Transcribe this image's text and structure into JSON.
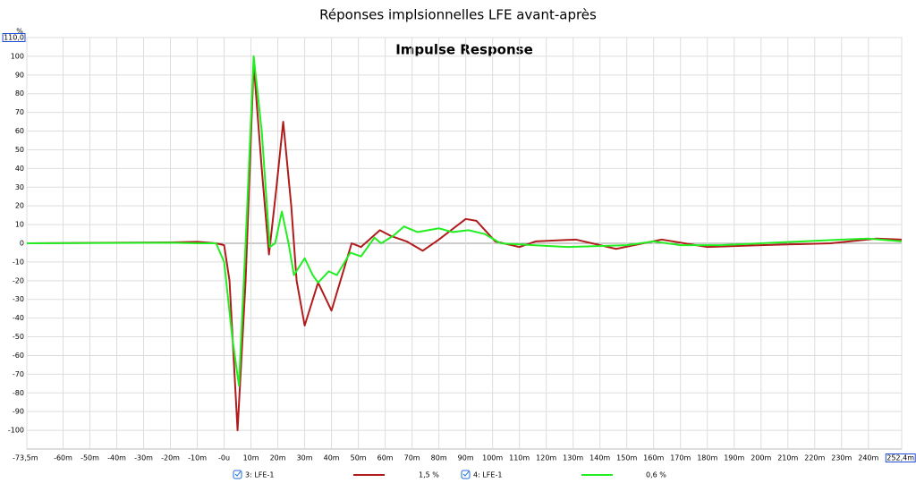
{
  "chart_data": {
    "type": "line",
    "title": "Réponses implsionnelles LFE avant-après",
    "subtitle": "Impulse Response",
    "y_label": "%",
    "xlim": [
      -73.5,
      252.4
    ],
    "ylim": [
      -110,
      110
    ],
    "grid": true,
    "xticks": [
      {
        "value": -73.5,
        "label": "-73,5m"
      },
      {
        "value": -60,
        "label": "-60m"
      },
      {
        "value": -50,
        "label": "-50m"
      },
      {
        "value": -40,
        "label": "-40m"
      },
      {
        "value": -30,
        "label": "-30m"
      },
      {
        "value": -20,
        "label": "-20m"
      },
      {
        "value": -10,
        "label": "-10m"
      },
      {
        "value": 0,
        "label": "-0u"
      },
      {
        "value": 10,
        "label": "10m"
      },
      {
        "value": 20,
        "label": "20m"
      },
      {
        "value": 30,
        "label": "30m"
      },
      {
        "value": 40,
        "label": "40m"
      },
      {
        "value": 50,
        "label": "50m"
      },
      {
        "value": 60,
        "label": "60m"
      },
      {
        "value": 70,
        "label": "70m"
      },
      {
        "value": 80,
        "label": "80m"
      },
      {
        "value": 90,
        "label": "90m"
      },
      {
        "value": 100,
        "label": "100m"
      },
      {
        "value": 110,
        "label": "110m"
      },
      {
        "value": 120,
        "label": "120m"
      },
      {
        "value": 130,
        "label": "130m"
      },
      {
        "value": 140,
        "label": "140m"
      },
      {
        "value": 150,
        "label": "150m"
      },
      {
        "value": 160,
        "label": "160m"
      },
      {
        "value": 170,
        "label": "170m"
      },
      {
        "value": 180,
        "label": "180m"
      },
      {
        "value": 190,
        "label": "190m"
      },
      {
        "value": 200,
        "label": "200m"
      },
      {
        "value": 210,
        "label": "210m"
      },
      {
        "value": 220,
        "label": "220m"
      },
      {
        "value": 230,
        "label": "230m"
      },
      {
        "value": 240,
        "label": "240m"
      },
      {
        "value": 252.4,
        "label": "252,4m"
      }
    ],
    "yticks": [
      {
        "value": 110,
        "label": "110,0"
      },
      100,
      90,
      80,
      70,
      60,
      50,
      40,
      30,
      20,
      10,
      0,
      -10,
      -20,
      -30,
      -40,
      -50,
      -60,
      -70,
      -80,
      -90,
      -100
    ],
    "series": [
      {
        "name": "3: LFE-1",
        "legend_note": "1,5 %",
        "color": "#b01c1c",
        "x": [
          -73.5,
          -20,
          -10,
          -3,
          0,
          2,
          5,
          8,
          11,
          14,
          16.7,
          19.5,
          22,
          25,
          27,
          30,
          35,
          40,
          47.5,
          51,
          58,
          62,
          68,
          74,
          80,
          90,
          94,
          101,
          110,
          116,
          131,
          146,
          163,
          180,
          200,
          226,
          243,
          252.4
        ],
        "values": [
          0,
          0.5,
          0.8,
          0,
          -1,
          -20,
          -100,
          -20,
          96,
          40,
          -6,
          30,
          65,
          20,
          -20,
          -44,
          -21,
          -36,
          0,
          -2,
          7,
          4,
          1,
          -4,
          2,
          13,
          12,
          1,
          -2,
          1,
          2,
          -3,
          2,
          -2,
          -1,
          0,
          2.5,
          2
        ]
      },
      {
        "name": "4: LFE-1",
        "legend_note": "0,6 %",
        "color": "#22ee22",
        "x": [
          -73.5,
          -20,
          -10,
          -3,
          0,
          3,
          5.5,
          8,
          11,
          14,
          17,
          19,
          21.5,
          24,
          26,
          30,
          33,
          35,
          39,
          42,
          47,
          51,
          56,
          58.5,
          63,
          67,
          72,
          80,
          85,
          91,
          97,
          103,
          115,
          128,
          150,
          160,
          170,
          185,
          200,
          230,
          240,
          252.4
        ],
        "values": [
          0,
          0.3,
          0,
          0,
          -10,
          -50,
          -76,
          0,
          100,
          60,
          -2,
          0,
          17,
          0,
          -17,
          -8,
          -17,
          -21,
          -15,
          -17,
          -5,
          -7,
          3,
          0,
          4,
          9,
          6,
          8,
          6,
          7,
          5,
          0,
          -1,
          -2,
          -1,
          1,
          -1,
          -1,
          0,
          2,
          2.5,
          1
        ]
      }
    ]
  }
}
